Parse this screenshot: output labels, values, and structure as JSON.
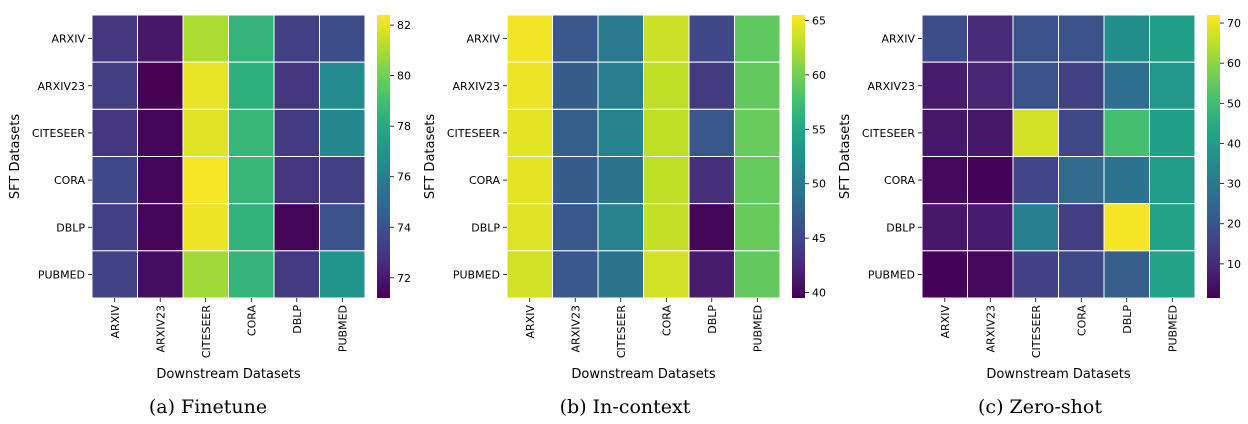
{
  "chart_data": [
    {
      "type": "heatmap",
      "caption": "(a) Finetune",
      "xlabel": "Downstream Datasets",
      "ylabel": "SFT Datasets",
      "x_categories": [
        "ARXIV",
        "ARXIV23",
        "CITESEER",
        "CORA",
        "DBLP",
        "PUBMED"
      ],
      "y_categories": [
        "ARXIV",
        "ARXIV23",
        "CITESEER",
        "CORA",
        "DBLP",
        "PUBMED"
      ],
      "values": [
        [
          73.0,
          71.9,
          81.0,
          78.5,
          73.3,
          73.8
        ],
        [
          73.2,
          71.2,
          82.0,
          78.3,
          73.0,
          76.5
        ],
        [
          73.0,
          71.3,
          81.9,
          78.6,
          73.1,
          76.3
        ],
        [
          73.6,
          71.3,
          82.3,
          78.6,
          72.9,
          73.3
        ],
        [
          73.3,
          71.3,
          82.1,
          78.4,
          71.3,
          74.0
        ],
        [
          73.4,
          71.6,
          80.8,
          78.5,
          73.1,
          77.0
        ]
      ],
      "vmin": 71.2,
      "vmax": 82.4,
      "colorbar_ticks": [
        72,
        74,
        76,
        78,
        80,
        82
      ],
      "colormap": "viridis"
    },
    {
      "type": "heatmap",
      "caption": "(b) In-context",
      "xlabel": "Downstream Datasets",
      "ylabel": "SFT Datasets",
      "x_categories": [
        "ARXIV",
        "ARXIV23",
        "CITESEER",
        "CORA",
        "DBLP",
        "PUBMED"
      ],
      "y_categories": [
        "ARXIV",
        "ARXIV23",
        "CITESEER",
        "CORA",
        "DBLP",
        "PUBMED"
      ],
      "values": [
        [
          65.0,
          46.5,
          50.0,
          63.5,
          45.0,
          59.0
        ],
        [
          64.8,
          47.0,
          50.5,
          63.0,
          44.0,
          59.2
        ],
        [
          64.5,
          47.2,
          51.0,
          63.0,
          46.5,
          59.5
        ],
        [
          64.5,
          47.0,
          49.5,
          63.0,
          43.0,
          59.3
        ],
        [
          64.3,
          46.5,
          51.0,
          63.2,
          39.8,
          59.4
        ],
        [
          63.7,
          46.5,
          49.5,
          63.8,
          41.5,
          59.2
        ]
      ],
      "vmin": 39.5,
      "vmax": 65.5,
      "colorbar_ticks": [
        40,
        45,
        50,
        55,
        60,
        65
      ],
      "colormap": "viridis"
    },
    {
      "type": "heatmap",
      "caption": "(c) Zero-shot",
      "xlabel": "Downstream Datasets",
      "ylabel": "SFT Datasets",
      "x_categories": [
        "ARXIV",
        "ARXIV23",
        "CITESEER",
        "CORA",
        "DBLP",
        "PUBMED"
      ],
      "y_categories": [
        "ARXIV",
        "ARXIV23",
        "CITESEER",
        "CORA",
        "DBLP",
        "PUBMED"
      ],
      "values": [
        [
          18.0,
          10.0,
          19.0,
          19.0,
          36.0,
          41.0
        ],
        [
          7.0,
          9.0,
          19.0,
          15.0,
          27.0,
          39.0
        ],
        [
          6.0,
          6.0,
          67.0,
          17.0,
          51.0,
          41.0
        ],
        [
          3.0,
          2.0,
          16.0,
          26.0,
          28.0,
          40.0
        ],
        [
          6.0,
          7.0,
          32.0,
          14.0,
          71.0,
          42.0
        ],
        [
          2.0,
          3.0,
          15.0,
          17.0,
          22.0,
          42.0
        ]
      ],
      "vmin": 1.5,
      "vmax": 72.0,
      "colorbar_ticks": [
        10,
        20,
        30,
        40,
        50,
        60,
        70
      ],
      "colormap": "viridis"
    }
  ]
}
